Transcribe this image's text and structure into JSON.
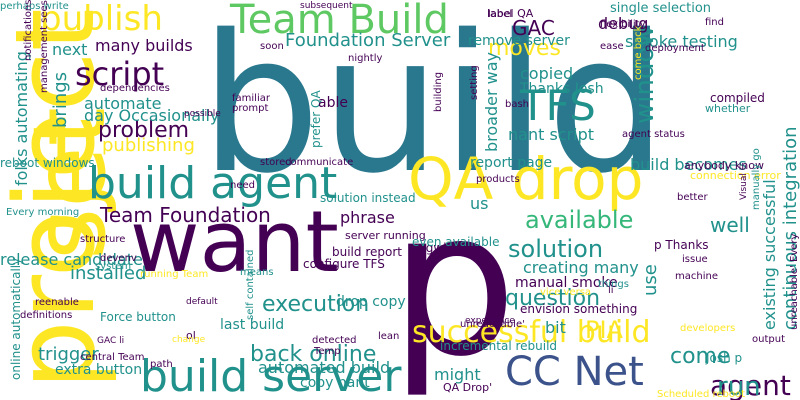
{
  "colors": {
    "background": "#ffffff",
    "palette": [
      "#440154",
      "#3b528b",
      "#21918c",
      "#5ec962",
      "#fde725",
      "#2a788e",
      "#35b779"
    ]
  },
  "words": [
    "build",
    "p",
    "want",
    "set",
    "project",
    "build server",
    "QA drop",
    "build agent",
    "Team Build",
    "publish",
    "script",
    "TFS",
    "CC Net",
    "successful build",
    "Team Foundation",
    "Foundation Server",
    "many builds",
    "moves",
    "problem",
    "available",
    "solution",
    "question",
    "execution",
    "back online",
    "automated build",
    "release candidate",
    "installed",
    "publishing",
    "automate",
    "day Occasionally",
    "next",
    "brings",
    "copied",
    "Thanks Josh",
    "nant script",
    "window",
    "debug",
    "smoke testing",
    "GAC",
    "remove server",
    "continuous integration",
    "existing successful",
    "build becomes",
    "report page",
    "creating many",
    "manual smoke",
    "PIA",
    "bit",
    "come",
    "agent",
    "run",
    "might",
    "copy nant",
    "trigger",
    "extra button",
    "Force button",
    "last build",
    "drop copy",
    "phrase",
    "solution instead",
    "us",
    "well",
    "use",
    "incremental rebuild",
    "QA Drop'",
    "Josh p",
    "p Thanks",
    "broader way",
    "folks automating",
    "reboot windows",
    "Every morning",
    "online automatically",
    "perhaps write",
    "subsequent",
    "single selection",
    "compiled",
    "agent status",
    "connection error",
    "cygwin",
    "configure TFS",
    "build report",
    "server running",
    "experience",
    "envision something",
    "even available",
    "familiar",
    "prompt",
    "prefer QA",
    "able",
    "dependencies",
    "stored",
    "communicate",
    "need",
    "structure",
    "devenv",
    "system",
    "definitions",
    "running Team",
    "central Team",
    "path",
    "reenable",
    "means",
    "detected",
    "Temp",
    "lean",
    "issue",
    "machine",
    "developers",
    "output",
    "label QA",
    "flexibility",
    "ease",
    "deployment",
    "find",
    "setting",
    "bash",
    "soon",
    "nightly",
    "building",
    "products",
    "label",
    "GAC li",
    "ol",
    "li",
    "anybody know",
    "whether",
    "come back",
    "vice versa",
    "better",
    "change",
    "default",
    "possible",
    "notifications",
    "management sees",
    "self contained",
    "Scheduled reboot",
    "manually go",
    "unreachable' Every",
    "unreachable'",
    "things",
    "Visual C"
  ]
}
